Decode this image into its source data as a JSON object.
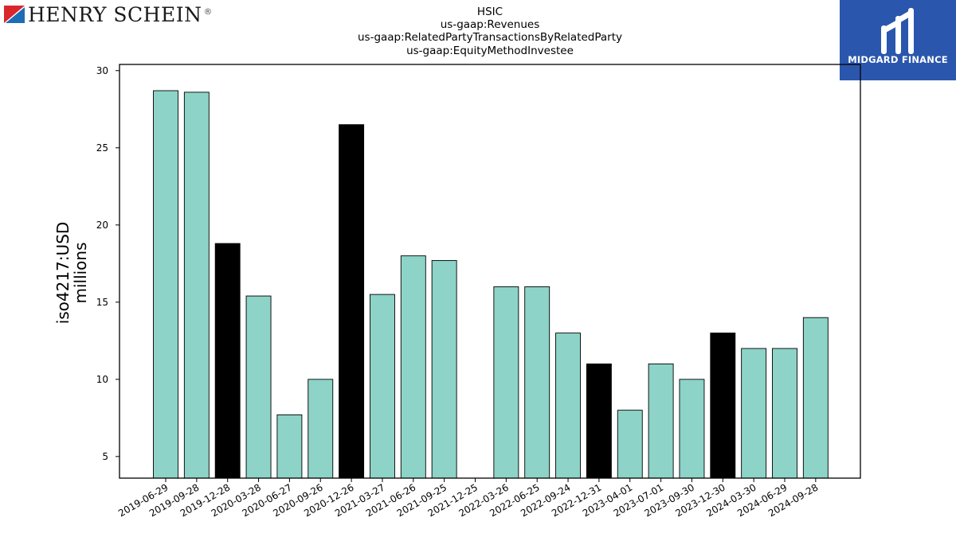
{
  "header": {
    "title_lines": [
      "HSIC",
      "us-gaap:Revenues",
      "us-gaap:RelatedPartyTransactionsByRelatedParty",
      "us-gaap:EquityMethodInvestee"
    ]
  },
  "logos": {
    "left": {
      "name": "HENRY SCHEIN",
      "mark": "®"
    },
    "right": {
      "name": "MIDGARD FINANCE",
      "background": "#2a57ad"
    }
  },
  "chart_data": {
    "type": "bar",
    "ylabel": "iso4217:USD\nmillions",
    "ylim": [
      3.6,
      30.4
    ],
    "yticks": [
      5,
      10,
      15,
      20,
      25,
      30
    ],
    "categories": [
      "2019-06-29",
      "2019-09-28",
      "2019-12-28",
      "2020-03-28",
      "2020-06-27",
      "2020-09-26",
      "2020-12-26",
      "2021-03-27",
      "2021-06-26",
      "2021-09-25",
      "2021-12-25",
      "2022-03-26",
      "2022-06-25",
      "2022-09-24",
      "2022-12-31",
      "2023-04-01",
      "2023-07-01",
      "2023-09-30",
      "2023-12-30",
      "2024-03-30",
      "2024-06-29",
      "2024-09-28"
    ],
    "values": [
      28.7,
      28.6,
      18.8,
      15.4,
      7.7,
      10,
      26.5,
      15.5,
      18,
      17.7,
      null,
      16,
      16,
      13,
      11,
      8,
      11,
      10,
      13,
      12,
      12,
      14
    ],
    "highlight": [
      false,
      false,
      true,
      false,
      false,
      false,
      true,
      false,
      false,
      false,
      false,
      false,
      false,
      false,
      true,
      false,
      false,
      false,
      true,
      false,
      false,
      false
    ],
    "colors": {
      "normal": "#8dd3c7",
      "highlight": "#000000",
      "edge": "#000000"
    },
    "grid": false,
    "legend": "none"
  }
}
